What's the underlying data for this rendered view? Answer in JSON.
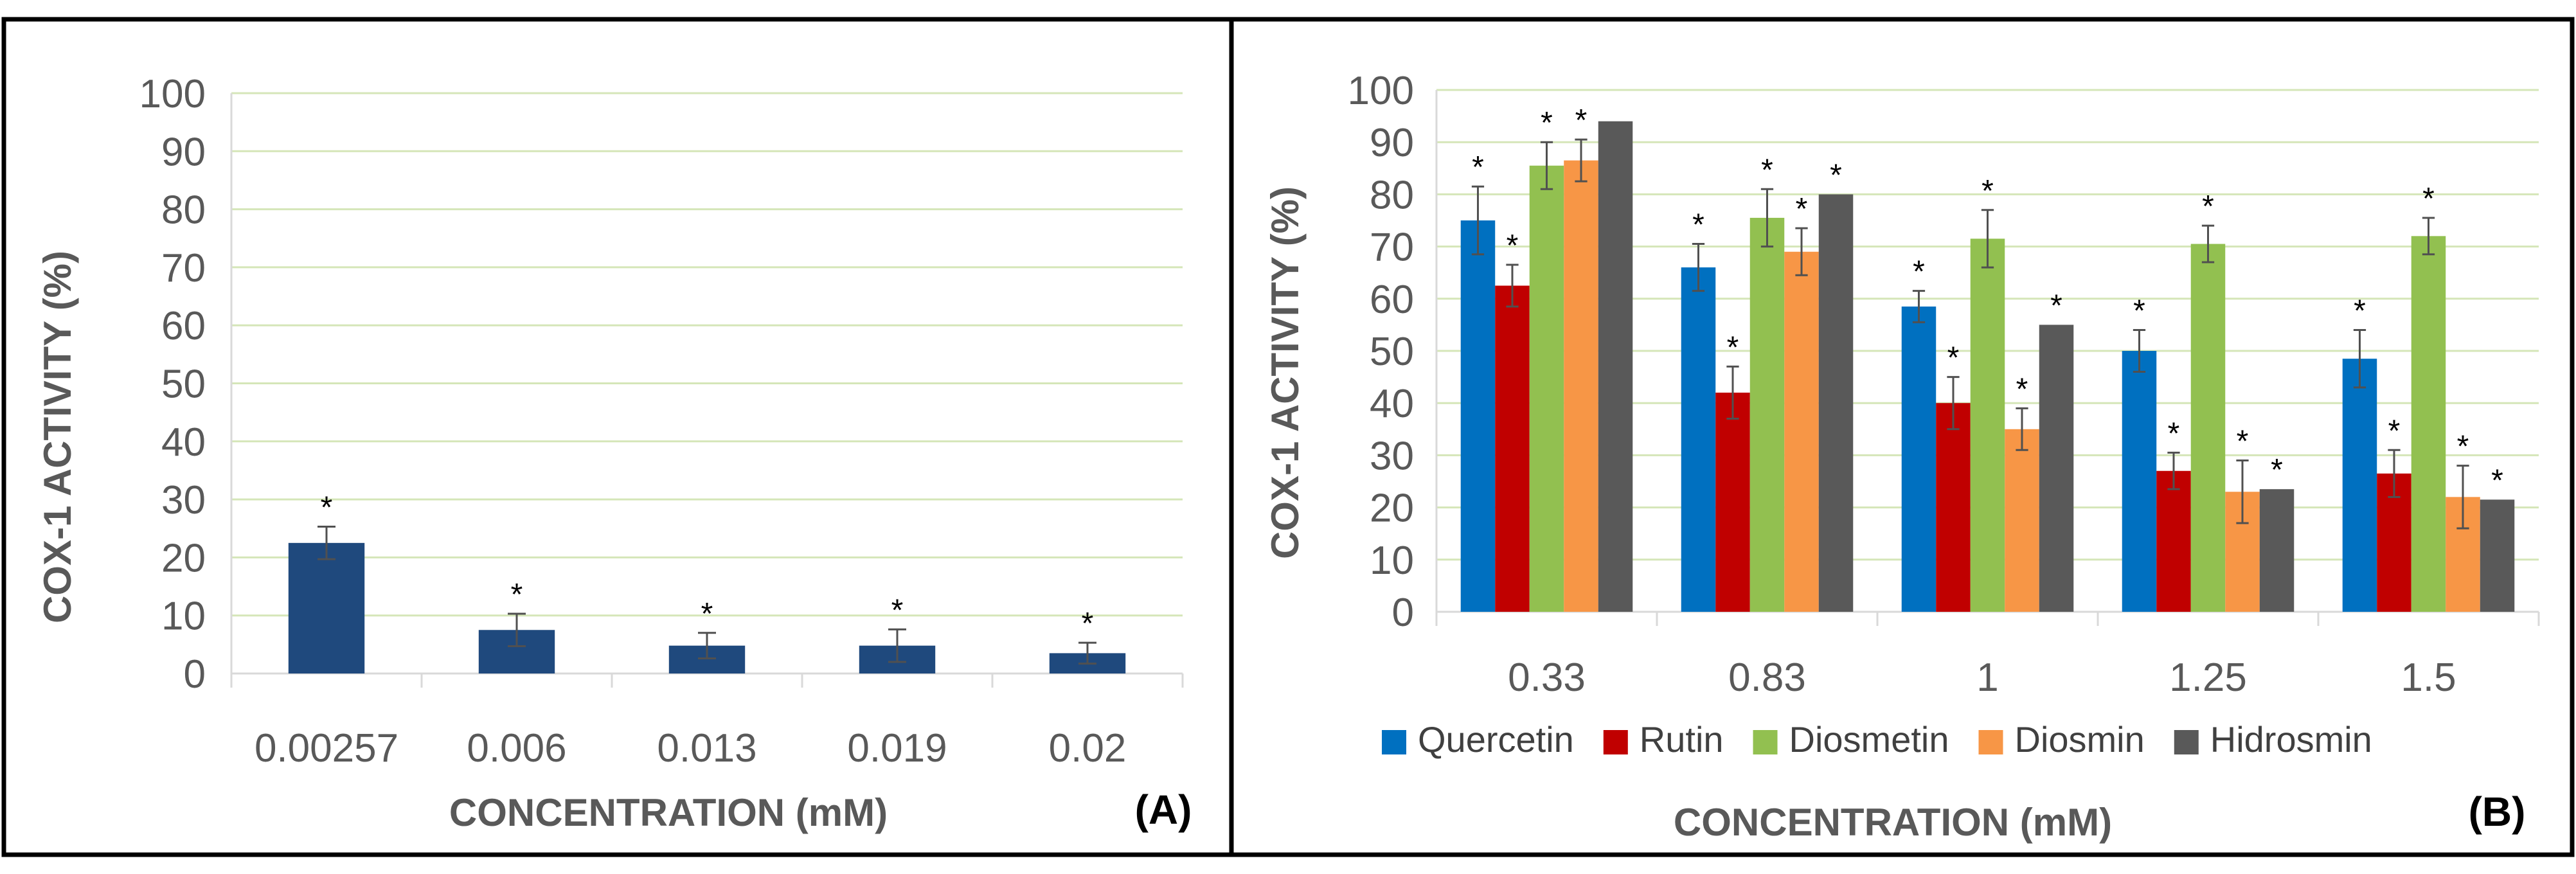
{
  "chart_data": [
    {
      "id": "A",
      "type": "bar",
      "panel_label": "(A)",
      "xlabel": "CONCENTRATION (mM)",
      "ylabel": "COX-1 ACTIVITY (%)",
      "ylim": [
        0,
        100
      ],
      "yticks": [
        "0",
        "10",
        "20",
        "30",
        "40",
        "50",
        "60",
        "70",
        "80",
        "90",
        "100"
      ],
      "grid": true,
      "categories": [
        "0.00257",
        "0.006",
        "0.013",
        "0.019",
        "0.02"
      ],
      "series": [
        {
          "name": "",
          "color": "#1f497d",
          "values": [
            22.5,
            7.5,
            4.8,
            4.8,
            3.5
          ],
          "errors": [
            2.8,
            2.8,
            2.2,
            2.8,
            1.8
          ],
          "annotations": [
            "*",
            "*",
            "*",
            "*",
            "*"
          ]
        }
      ]
    },
    {
      "id": "B",
      "type": "bar",
      "panel_label": "(B)",
      "xlabel": "CONCENTRATION (mM)",
      "ylabel": "COX-1 ACTIVITY (%)",
      "ylim": [
        0,
        100
      ],
      "yticks": [
        "0",
        "10",
        "20",
        "30",
        "40",
        "50",
        "60",
        "70",
        "80",
        "90",
        "100"
      ],
      "grid": true,
      "legend": "bottom",
      "categories": [
        "0.33",
        "0.83",
        "1",
        "1.25",
        "1.5"
      ],
      "series": [
        {
          "name": "Quercetin",
          "color": "#0070c0",
          "values": [
            75,
            66,
            58.5,
            50,
            48.5
          ],
          "errors": [
            6.5,
            4.5,
            3.0,
            4.0,
            5.5
          ],
          "annotations": [
            "*",
            "*",
            "*",
            "*",
            "*"
          ]
        },
        {
          "name": "Rutin",
          "color": "#c00000",
          "values": [
            62.5,
            42,
            40,
            27,
            26.5
          ],
          "errors": [
            4.0,
            5.0,
            5.0,
            3.5,
            4.5
          ],
          "annotations": [
            "*",
            "*",
            "*",
            "*",
            "*"
          ]
        },
        {
          "name": "Diosmetin",
          "color": "#92c050",
          "values": [
            85.5,
            75.5,
            71.5,
            70.5,
            72
          ],
          "errors": [
            4.5,
            5.5,
            5.5,
            3.5,
            3.5
          ],
          "annotations": [
            "*",
            "*",
            "*",
            "*",
            "*"
          ]
        },
        {
          "name": "Diosmin",
          "color": "#f79646",
          "values": [
            86.5,
            69,
            35,
            23,
            22
          ],
          "errors": [
            4.0,
            4.5,
            4.0,
            6.0,
            6.0
          ],
          "annotations": [
            "*",
            "*",
            "*",
            "*",
            "*"
          ]
        },
        {
          "name": "Hidrosmin",
          "color": "#595959",
          "values": [
            94,
            80,
            55,
            23.5,
            21.5
          ],
          "errors": [
            0,
            0,
            0,
            0,
            0
          ],
          "annotations": [
            "",
            "*",
            "*",
            "*",
            "*"
          ]
        }
      ]
    }
  ]
}
